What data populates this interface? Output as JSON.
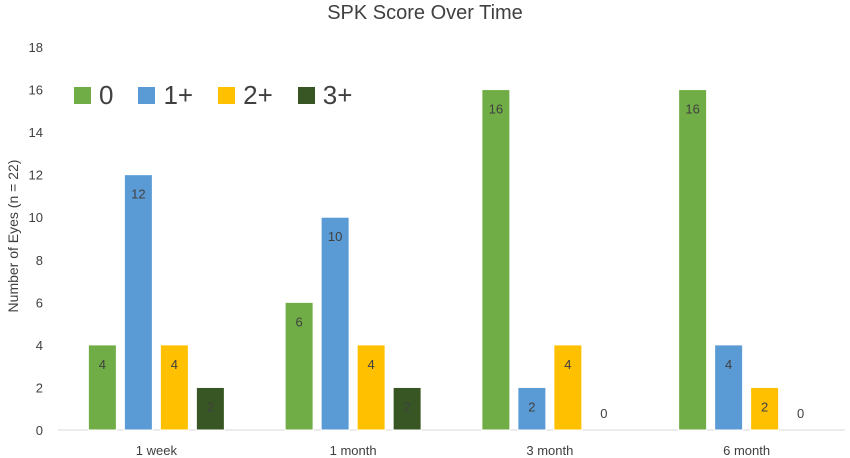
{
  "chart_data": {
    "type": "bar",
    "title": "SPK Score Over Time",
    "xlabel": "",
    "ylabel": "Number of Eyes (n = 22)",
    "ylim": [
      0,
      18
    ],
    "yticks": [
      "0",
      "2",
      "4",
      "6",
      "8",
      "10",
      "12",
      "14",
      "16",
      "18"
    ],
    "categories": [
      "1 week",
      "1 month",
      "3 month",
      "6 month"
    ],
    "series": [
      {
        "name": "0",
        "values": [
          4,
          6,
          16,
          16
        ],
        "color": "#70ad47"
      },
      {
        "name": "1+",
        "values": [
          12,
          10,
          2,
          4
        ],
        "color": "#5b9bd5"
      },
      {
        "name": "2+",
        "values": [
          4,
          4,
          4,
          2
        ],
        "color": "#ffc000"
      },
      {
        "name": "3+",
        "values": [
          2,
          2,
          0,
          0
        ],
        "color": "#375623"
      }
    ],
    "data_labels": true,
    "grid": false,
    "legend_position": "top-left"
  }
}
